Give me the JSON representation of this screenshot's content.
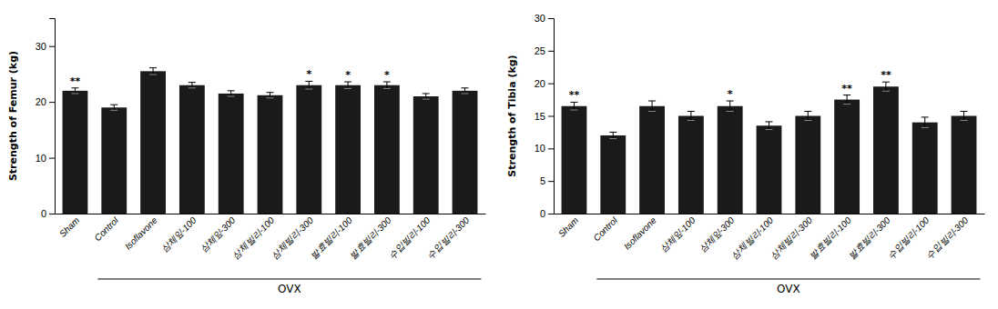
{
  "chart_data": [
    {
      "type": "bar",
      "ylabel": "Strength of Femur (kg)",
      "categories": [
        "Sham",
        "Control",
        "Isoflavone",
        "삼체잎-100",
        "삼체잎-300",
        "삼체빌리-100",
        "삼체빌리-300",
        "발효빌리-100",
        "발효빌리-300",
        "수입빌리-100",
        "수입빌리-300"
      ],
      "values": [
        22.0,
        19.0,
        25.5,
        23.0,
        21.5,
        21.2,
        23.0,
        23.0,
        23.0,
        21.0,
        22.0
      ],
      "errors": [
        0.5,
        0.5,
        0.6,
        0.5,
        0.5,
        0.5,
        0.7,
        0.6,
        0.6,
        0.5,
        0.5
      ],
      "significance": [
        "**",
        null,
        null,
        null,
        null,
        null,
        "*",
        "*",
        "*",
        null,
        null
      ],
      "annotations": [
        {
          "text": "OVX",
          "from": "Control",
          "to": "수입빌리-300"
        }
      ],
      "color": "#1a1a1a",
      "ylim": [
        0,
        35
      ],
      "yticks": [
        0,
        10,
        20,
        30
      ]
    },
    {
      "type": "bar",
      "ylabel": "Strength of Tibia (kg)",
      "categories": [
        "Sham",
        "Control",
        "Isoflavone",
        "삼체잎-100",
        "삼체잎-300",
        "삼체빌리-100",
        "삼체빌리-300",
        "발효빌리-100",
        "발효빌리-300",
        "수입빌리-100",
        "수입빌리-300"
      ],
      "values": [
        16.5,
        12.0,
        16.5,
        15.0,
        16.5,
        13.5,
        15.0,
        17.5,
        19.5,
        14.0,
        15.0
      ],
      "errors": [
        0.6,
        0.5,
        0.8,
        0.7,
        0.8,
        0.6,
        0.7,
        0.7,
        0.7,
        0.8,
        0.7
      ],
      "significance": [
        "**",
        null,
        null,
        null,
        "*",
        null,
        null,
        "**",
        "**",
        null,
        null
      ],
      "annotations": [
        {
          "text": "OVX",
          "from": "Control",
          "to": "수입빌리-300"
        }
      ],
      "color": "#1a1a1a",
      "ylim": [
        0,
        30
      ],
      "yticks": [
        0,
        5,
        10,
        15,
        20,
        25,
        30
      ]
    }
  ]
}
